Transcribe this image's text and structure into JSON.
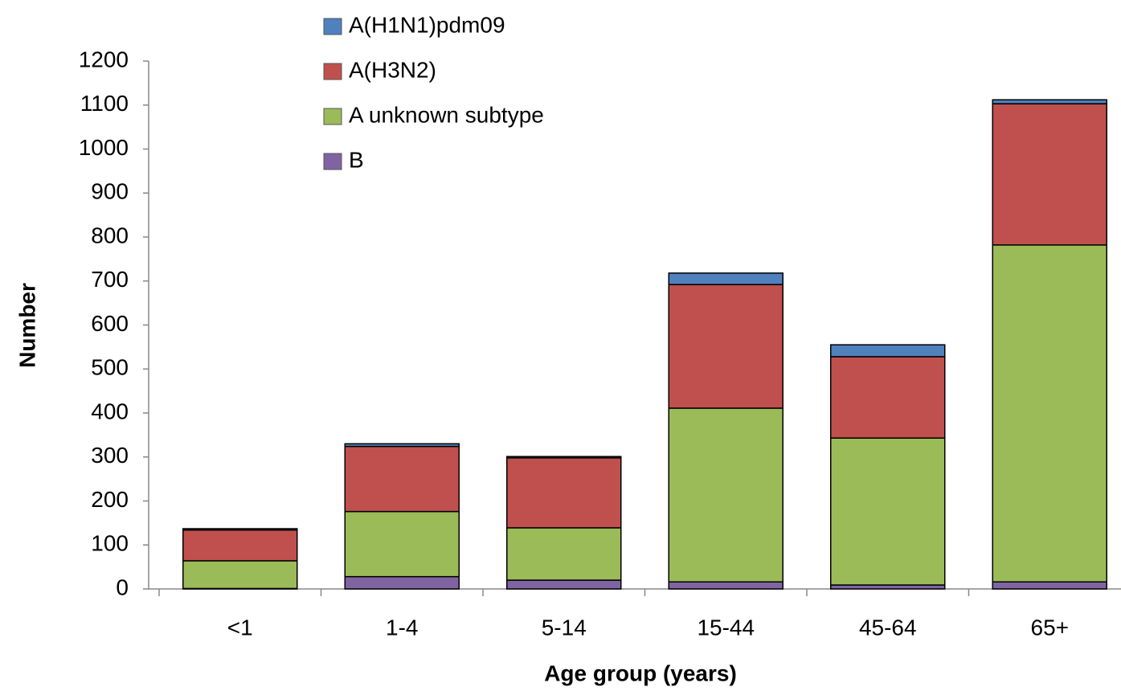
{
  "chart_data": {
    "type": "stacked_bar",
    "x_label": "Age group (years)",
    "y_label": "Number",
    "categories": [
      "<1",
      "1-4",
      "5-14",
      "15-44",
      "45-64",
      "65+"
    ],
    "series": [
      {
        "name": "A(H1N1)pdm09",
        "color": "#4f81bd",
        "values": [
          3,
          6,
          3,
          26,
          27,
          9
        ]
      },
      {
        "name": "A(H3N2)",
        "color": "#c0504d",
        "values": [
          70,
          148,
          159,
          281,
          185,
          321
        ]
      },
      {
        "name": "A unknown subtype",
        "color": "#9bbb59",
        "values": [
          63,
          148,
          119,
          395,
          334,
          766
        ]
      },
      {
        "name": "B",
        "color": "#8064a2",
        "values": [
          1,
          28,
          20,
          16,
          9,
          16
        ]
      }
    ],
    "ylim": [
      0,
      1200
    ],
    "yticks": [
      0,
      100,
      200,
      300,
      400,
      500,
      600,
      700,
      800,
      900,
      1000,
      1100,
      1200
    ],
    "grid": false
  }
}
